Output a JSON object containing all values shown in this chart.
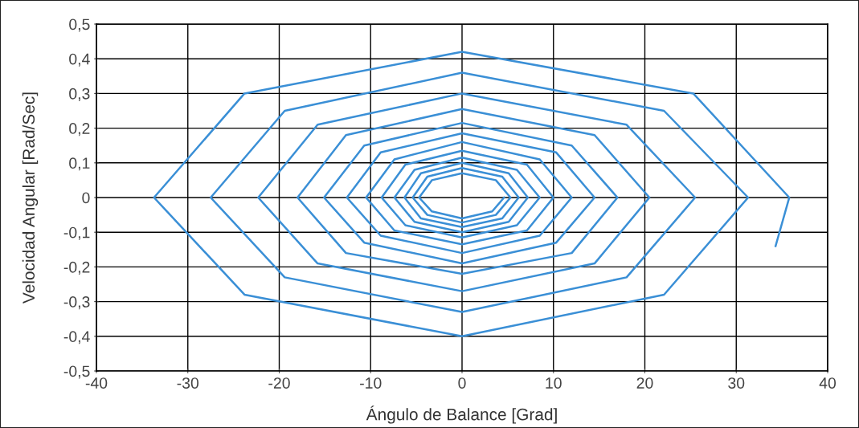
{
  "chart_data": {
    "type": "line",
    "xlabel": "Ángulo de Balance [Grad]",
    "ylabel": "Velocidad Angular [Rad/Sec]",
    "xlim": [
      -40,
      40
    ],
    "ylim": [
      -0.5,
      0.5
    ],
    "grid": true,
    "line_style": "solid",
    "marker": "none",
    "xticks": [
      -40,
      -30,
      -20,
      -10,
      0,
      10,
      20,
      30,
      40
    ],
    "yticks": [
      {
        "value": -0.5,
        "label": "-0,5"
      },
      {
        "value": -0.4,
        "label": "-0,4"
      },
      {
        "value": -0.3,
        "label": "-0,3"
      },
      {
        "value": -0.2,
        "label": "-0,2"
      },
      {
        "value": -0.1,
        "label": "-0,1"
      },
      0,
      {
        "value": 0.1,
        "label": "0,1"
      },
      {
        "value": 0.2,
        "label": "0,2"
      },
      {
        "value": 0.3,
        "label": "0,3"
      },
      {
        "value": 0.4,
        "label": "0,4"
      },
      {
        "value": 0.5,
        "label": "0,5"
      }
    ],
    "series": [
      {
        "color": "#3a8fd6",
        "x": [
          34.3,
          35.8,
          25.3,
          0,
          -23.8,
          -33.7,
          -23.8,
          0,
          22.1,
          31.3,
          22.1,
          0,
          -19.4,
          -27.5,
          -19.4,
          0,
          18.0,
          25.5,
          18.0,
          0,
          -15.8,
          -22.3,
          -15.8,
          0,
          14.5,
          20.5,
          14.5,
          0,
          -12.7,
          -18.0,
          -12.7,
          0,
          12.0,
          17.0,
          12.0,
          0,
          -10.7,
          -15.1,
          -10.7,
          0,
          10.3,
          14.5,
          10.3,
          0,
          -8.9,
          -12.6,
          -8.9,
          0,
          8.5,
          12.0,
          8.5,
          0,
          -7.4,
          -10.5,
          -7.4,
          0,
          7.1,
          10.0,
          7.1,
          0,
          -6.2,
          -8.8,
          -6.2,
          0,
          6.0,
          8.5,
          6.0,
          0,
          -5.2,
          -7.4,
          -5.2,
          0,
          5.1,
          7.2,
          5.1,
          0,
          -4.5,
          -6.3,
          -4.5,
          0,
          4.4,
          6.2,
          4.4,
          0,
          -3.8,
          -5.4,
          -3.8,
          0,
          3.7,
          5.3,
          3.7,
          0,
          -3.3,
          -4.7,
          -3.3,
          0,
          3.3,
          4.6
        ],
        "values": [
          -0.14,
          0,
          0.3,
          0.42,
          0.3,
          0,
          -0.28,
          -0.4,
          -0.28,
          0,
          0.25,
          0.36,
          0.25,
          0,
          -0.23,
          -0.33,
          -0.23,
          0,
          0.21,
          0.3,
          0.21,
          0,
          -0.19,
          -0.27,
          -0.19,
          0,
          0.18,
          0.255,
          0.18,
          0,
          -0.16,
          -0.22,
          -0.16,
          0,
          0.15,
          0.215,
          0.15,
          0,
          -0.13,
          -0.19,
          -0.13,
          0,
          0.13,
          0.185,
          0.13,
          0,
          -0.11,
          -0.16,
          -0.11,
          0,
          0.11,
          0.16,
          0.11,
          0,
          -0.095,
          -0.135,
          -0.095,
          0,
          0.095,
          0.135,
          0.095,
          0,
          -0.08,
          -0.115,
          -0.08,
          0,
          0.08,
          0.115,
          0.08,
          0,
          -0.07,
          -0.1,
          -0.07,
          0,
          0.07,
          0.1,
          0.07,
          0,
          -0.06,
          -0.085,
          -0.06,
          0,
          0.06,
          0.085,
          0.06,
          0,
          -0.05,
          -0.072,
          -0.05,
          0,
          0.05,
          0.07,
          0.05,
          0,
          -0.04,
          -0.06,
          -0.04,
          0
        ]
      }
    ]
  }
}
